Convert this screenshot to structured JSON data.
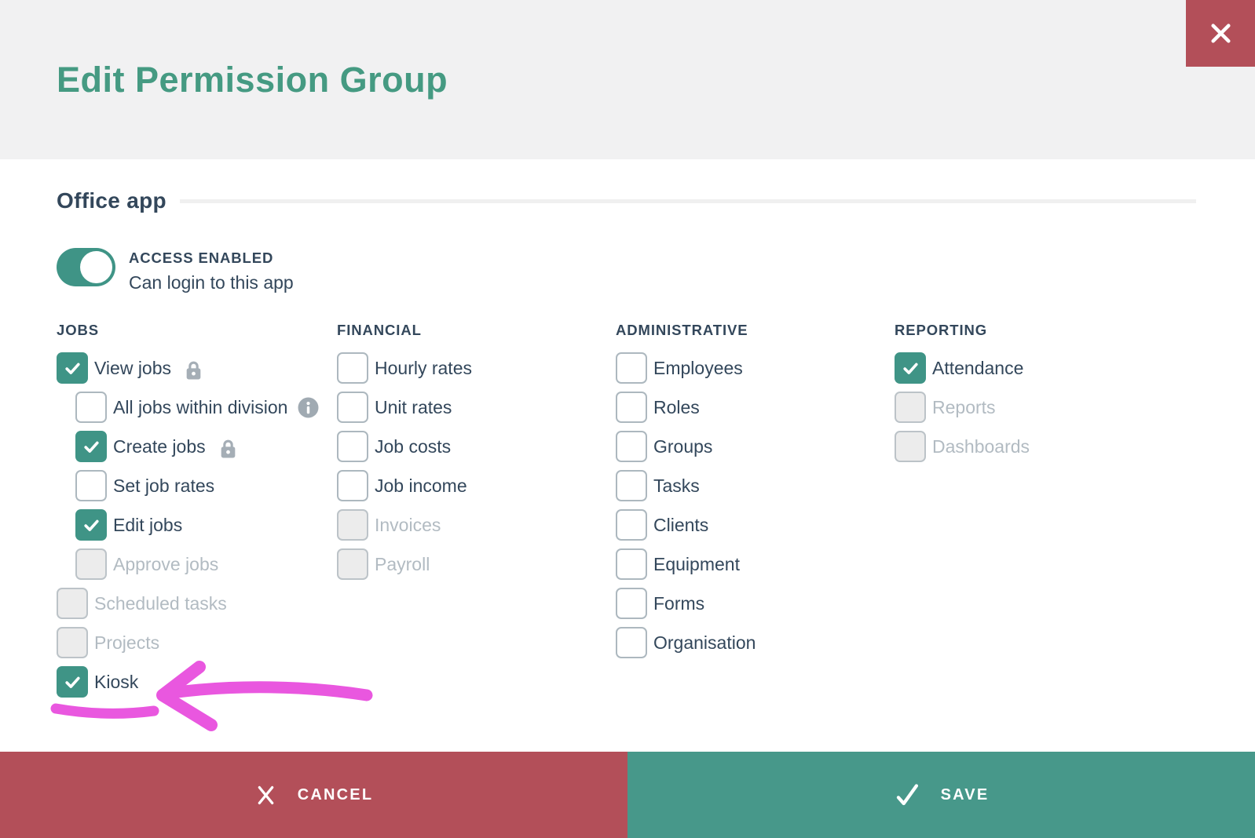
{
  "header": {
    "title": "Edit Permission Group"
  },
  "section": {
    "title": "Office app",
    "toggle": {
      "state": "on",
      "label": "ACCESS ENABLED",
      "description": "Can login to this app"
    }
  },
  "columns": [
    {
      "header": "JOBS",
      "items": [
        {
          "label": "View jobs",
          "state": "checked",
          "lock": true
        },
        {
          "label": "All jobs within division",
          "state": "unchecked",
          "indent": true,
          "info": true
        },
        {
          "label": "Create jobs",
          "state": "checked",
          "indent": true,
          "lock": true
        },
        {
          "label": "Set job rates",
          "state": "unchecked",
          "indent": true
        },
        {
          "label": "Edit jobs",
          "state": "checked",
          "indent": true
        },
        {
          "label": "Approve jobs",
          "state": "disabled",
          "indent": true
        },
        {
          "label": "Scheduled tasks",
          "state": "disabled"
        },
        {
          "label": "Projects",
          "state": "disabled"
        },
        {
          "label": "Kiosk",
          "state": "checked",
          "annotated": true
        }
      ]
    },
    {
      "header": "FINANCIAL",
      "items": [
        {
          "label": "Hourly rates",
          "state": "unchecked"
        },
        {
          "label": "Unit rates",
          "state": "unchecked"
        },
        {
          "label": "Job costs",
          "state": "unchecked"
        },
        {
          "label": "Job income",
          "state": "unchecked"
        },
        {
          "label": "Invoices",
          "state": "disabled"
        },
        {
          "label": "Payroll",
          "state": "disabled"
        }
      ]
    },
    {
      "header": "ADMINISTRATIVE",
      "items": [
        {
          "label": "Employees",
          "state": "unchecked"
        },
        {
          "label": "Roles",
          "state": "unchecked"
        },
        {
          "label": "Groups",
          "state": "unchecked"
        },
        {
          "label": "Tasks",
          "state": "unchecked"
        },
        {
          "label": "Clients",
          "state": "unchecked"
        },
        {
          "label": "Equipment",
          "state": "unchecked"
        },
        {
          "label": "Forms",
          "state": "unchecked"
        },
        {
          "label": "Organisation",
          "state": "unchecked"
        }
      ]
    },
    {
      "header": "REPORTING",
      "items": [
        {
          "label": "Attendance",
          "state": "checked"
        },
        {
          "label": "Reports",
          "state": "disabled"
        },
        {
          "label": "Dashboards",
          "state": "disabled"
        }
      ]
    }
  ],
  "footer": {
    "cancel_label": "CANCEL",
    "save_label": "SAVE"
  },
  "annotation": {
    "shape": "hand-drawn-arrow-with-underline",
    "color": "#e957df",
    "points_to": "Kiosk"
  },
  "colors": {
    "title_green": "#459a82",
    "brand_teal": "#3f9486",
    "save_teal": "#47988a",
    "danger_red": "#b34f59",
    "header_gray": "#f1f1f2",
    "text_slate": "#33475b",
    "disabled_text": "#b2bbc2",
    "icon_gray": "#a5aeb6",
    "annotation_pink": "#e957df"
  }
}
